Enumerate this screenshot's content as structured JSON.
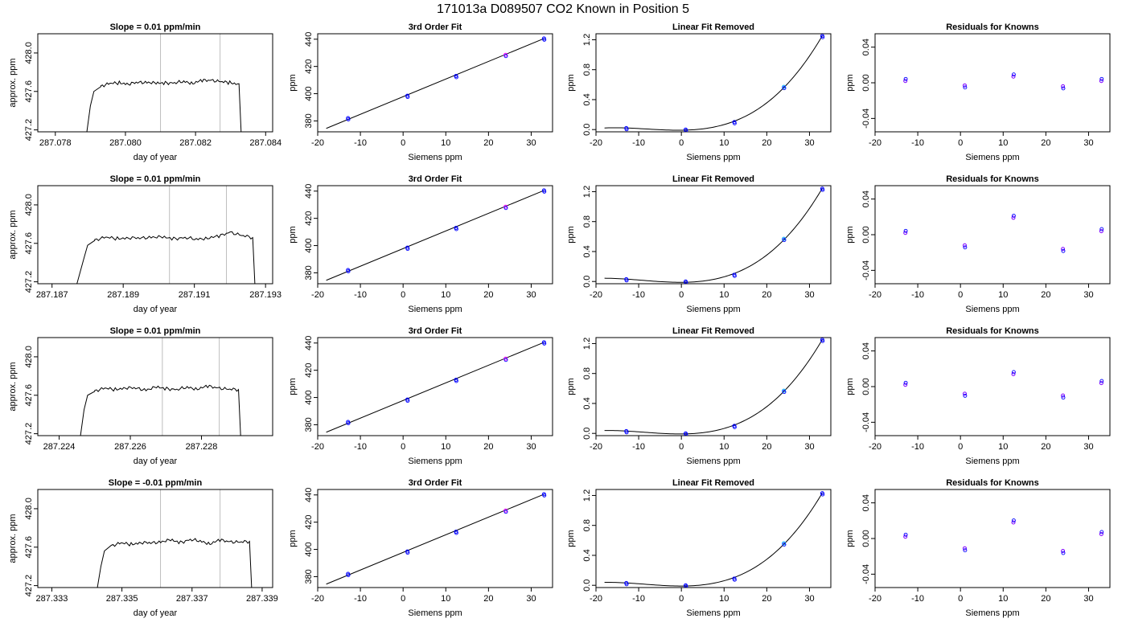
{
  "page": {
    "title": "171013a      D089507    CO2 Known in Position  5"
  },
  "colors": {
    "axis": "#000000",
    "line": "#000000",
    "vline": "#bebebe",
    "point_blue": "#0000ff",
    "point_magenta": "#ff00ff",
    "point_cyan": "#00aaff",
    "point_purple": "#8000ff"
  },
  "chart_data": [
    {
      "type": "line",
      "row": 1,
      "panel": "time",
      "title": "Slope =  0.01  ppm/min",
      "xlabel": "day of year",
      "ylabel": "approx. ppm",
      "xlim": [
        287.0775,
        287.0842
      ],
      "ylim": [
        427.18,
        428.2
      ],
      "xticks": [
        287.078,
        287.08,
        287.082,
        287.084
      ],
      "xtick_labels": [
        "287.078",
        "287.080",
        "287.082",
        "287.084"
      ],
      "yticks": [
        427.2,
        427.6,
        428.0
      ],
      "ytick_labels": [
        "427.2",
        "427.6",
        "428.0"
      ],
      "vlines": [
        287.081,
        287.0827
      ],
      "segments": {
        "start": [
          287.0789,
          427.18
        ],
        "rise": [
          [
            287.079,
            427.45
          ],
          [
            287.0791,
            427.6
          ],
          [
            287.0793,
            427.65
          ]
        ],
        "end": [
          287.0833,
          427.18
        ]
      },
      "plateau": [
        427.66,
        427.68,
        427.69,
        427.68,
        427.69,
        427.7,
        427.68,
        427.69,
        427.69,
        427.7,
        427.69,
        427.71,
        427.72,
        427.7,
        427.69,
        427.68
      ]
    },
    {
      "type": "scatter",
      "row": 1,
      "panel": "fit3",
      "title": "3rd Order Fit",
      "xlabel": "Siemens ppm",
      "ylabel": "ppm",
      "xlim": [
        -20,
        35
      ],
      "ylim": [
        372,
        444
      ],
      "xticks": [
        -20,
        -10,
        0,
        10,
        20,
        30
      ],
      "yticks": [
        380,
        400,
        420,
        440
      ],
      "x": [
        -12.9,
        1.0,
        12.4,
        24.0,
        33.0
      ],
      "y": [
        382.0,
        398.5,
        413.0,
        428.5,
        440.5
      ],
      "fit_line": [
        [
          -18,
          374.5
        ],
        [
          33,
          440.5
        ]
      ]
    },
    {
      "type": "scatter",
      "row": 1,
      "panel": "linrem",
      "title": "Linear Fit Removed",
      "xlabel": "Siemens ppm",
      "ylabel": "ppm",
      "xlim": [
        -20,
        35
      ],
      "ylim": [
        -0.03,
        1.28
      ],
      "xticks": [
        -20,
        -10,
        0,
        10,
        20,
        30
      ],
      "yticks": [
        0.0,
        0.4,
        0.8,
        1.2
      ],
      "x": [
        -12.9,
        1.0,
        12.4,
        24.0,
        33.0
      ],
      "y": [
        0.02,
        0.0,
        0.1,
        0.57,
        1.25
      ]
    },
    {
      "type": "scatter",
      "row": 1,
      "panel": "resid",
      "title": "Residuals for Knowns",
      "xlabel": "Siemens ppm",
      "ylabel": "ppm",
      "xlim": [
        -20,
        35
      ],
      "ylim": [
        -0.055,
        0.055
      ],
      "xticks": [
        -20,
        -10,
        0,
        10,
        20,
        30
      ],
      "yticks": [
        -0.04,
        0.0,
        0.04
      ],
      "ytick_labels": [
        "-0.04",
        "0.00",
        "0.04"
      ],
      "x": [
        -12.9,
        1.0,
        12.4,
        24.0,
        33.0
      ],
      "y": [
        0.002,
        -0.003,
        0.007,
        -0.004,
        0.002
      ]
    },
    {
      "type": "line",
      "row": 2,
      "panel": "time",
      "title": "Slope =  0.01  ppm/min",
      "xlabel": "day of year",
      "ylabel": "approx. ppm",
      "xlim": [
        287.1866,
        287.1932
      ],
      "ylim": [
        427.18,
        428.2
      ],
      "xticks": [
        287.187,
        287.189,
        287.191,
        287.193
      ],
      "xtick_labels": [
        "287.187",
        "287.189",
        "287.191",
        "287.193"
      ],
      "vlines": [
        287.1903,
        287.1919
      ],
      "yticks": [
        427.2,
        427.6,
        428.0
      ],
      "ytick_labels": [
        "427.2",
        "427.6",
        "428.0"
      ],
      "segments": {
        "start": [
          287.1877,
          427.18
        ],
        "rise": [
          [
            287.1879,
            427.45
          ],
          [
            287.188,
            427.58
          ],
          [
            287.1882,
            427.63
          ]
        ],
        "end": [
          287.1927,
          427.18
        ]
      },
      "plateau": [
        427.64,
        427.66,
        427.65,
        427.66,
        427.65,
        427.67,
        427.66,
        427.65,
        427.66,
        427.64,
        427.66,
        427.67,
        427.72,
        427.68,
        427.66
      ]
    },
    {
      "type": "scatter",
      "row": 2,
      "panel": "fit3",
      "title": "3rd Order Fit",
      "xlabel": "Siemens ppm",
      "ylabel": "ppm",
      "xlim": [
        -20,
        35
      ],
      "ylim": [
        372,
        444
      ],
      "xticks": [
        -20,
        -10,
        0,
        10,
        20,
        30
      ],
      "yticks": [
        380,
        400,
        420,
        440
      ],
      "x": [
        -12.9,
        1.0,
        12.4,
        24.0,
        33.0
      ],
      "y": [
        382.0,
        398.5,
        413.0,
        428.5,
        440.5
      ],
      "fit_line": [
        [
          -18,
          374.5
        ],
        [
          33,
          440.5
        ]
      ]
    },
    {
      "type": "scatter",
      "row": 2,
      "panel": "linrem",
      "title": "Linear Fit Removed",
      "xlabel": "Siemens ppm",
      "ylabel": "ppm",
      "xlim": [
        -20,
        35
      ],
      "ylim": [
        -0.03,
        1.28
      ],
      "xticks": [
        -20,
        -10,
        0,
        10,
        20,
        30
      ],
      "yticks": [
        0.0,
        0.4,
        0.8,
        1.2
      ],
      "x": [
        -12.9,
        1.0,
        12.4,
        24.0,
        33.0
      ],
      "y": [
        0.03,
        0.0,
        0.09,
        0.57,
        1.24
      ]
    },
    {
      "type": "scatter",
      "row": 2,
      "panel": "resid",
      "title": "Residuals for Knowns",
      "xlabel": "Siemens ppm",
      "ylabel": "ppm",
      "xlim": [
        -20,
        35
      ],
      "ylim": [
        -0.055,
        0.055
      ],
      "xticks": [
        -20,
        -10,
        0,
        10,
        20,
        30
      ],
      "yticks": [
        -0.04,
        0.0,
        0.04
      ],
      "ytick_labels": [
        "-0.04",
        "0.00",
        "0.04"
      ],
      "x": [
        -12.9,
        1.0,
        12.4,
        24.0,
        33.0
      ],
      "y": [
        0.002,
        -0.012,
        0.019,
        -0.016,
        0.004
      ]
    },
    {
      "type": "line",
      "row": 3,
      "panel": "time",
      "title": "Slope =  0.01  ppm/min",
      "xlabel": "day of year",
      "ylabel": "approx. ppm",
      "xlim": [
        287.2234,
        287.23
      ],
      "ylim": [
        427.18,
        428.2
      ],
      "xticks": [
        287.224,
        287.226,
        287.228
      ],
      "xtick_labels": [
        "287.224",
        "287.226",
        "287.228"
      ],
      "vlines": [
        287.2269,
        287.2285
      ],
      "yticks": [
        427.2,
        427.6,
        428.0
      ],
      "ytick_labels": [
        "427.2",
        "427.6",
        "428.0"
      ],
      "segments": {
        "start": [
          287.2246,
          427.18
        ],
        "rise": [
          [
            287.2247,
            427.45
          ],
          [
            287.2248,
            427.6
          ],
          [
            287.225,
            427.64
          ]
        ],
        "end": [
          287.2291,
          427.18
        ]
      },
      "plateau": [
        427.65,
        427.67,
        427.66,
        427.68,
        427.67,
        427.66,
        427.68,
        427.67,
        427.66,
        427.68,
        427.67,
        427.69,
        427.68,
        427.66,
        427.66
      ]
    },
    {
      "type": "scatter",
      "row": 3,
      "panel": "fit3",
      "title": "3rd Order Fit",
      "xlabel": "Siemens ppm",
      "ylabel": "ppm",
      "xlim": [
        -20,
        35
      ],
      "ylim": [
        372,
        444
      ],
      "xticks": [
        -20,
        -10,
        0,
        10,
        20,
        30
      ],
      "yticks": [
        380,
        400,
        420,
        440
      ],
      "x": [
        -12.9,
        1.0,
        12.4,
        24.0,
        33.0
      ],
      "y": [
        382.0,
        398.5,
        413.0,
        428.5,
        440.5
      ],
      "fit_line": [
        [
          -18,
          374.5
        ],
        [
          33,
          440.5
        ]
      ]
    },
    {
      "type": "scatter",
      "row": 3,
      "panel": "linrem",
      "title": "Linear Fit Removed",
      "xlabel": "Siemens ppm",
      "ylabel": "ppm",
      "xlim": [
        -20,
        35
      ],
      "ylim": [
        -0.03,
        1.28
      ],
      "xticks": [
        -20,
        -10,
        0,
        10,
        20,
        30
      ],
      "yticks": [
        0.0,
        0.4,
        0.8,
        1.2
      ],
      "x": [
        -12.9,
        1.0,
        12.4,
        24.0,
        33.0
      ],
      "y": [
        0.03,
        0.0,
        0.1,
        0.57,
        1.25
      ]
    },
    {
      "type": "scatter",
      "row": 3,
      "panel": "resid",
      "title": "Residuals for Knowns",
      "xlabel": "Siemens ppm",
      "ylabel": "ppm",
      "xlim": [
        -20,
        35
      ],
      "ylim": [
        -0.055,
        0.055
      ],
      "xticks": [
        -20,
        -10,
        0,
        10,
        20,
        30
      ],
      "yticks": [
        -0.04,
        0.0,
        0.04
      ],
      "ytick_labels": [
        "-0.04",
        "0.00",
        "0.04"
      ],
      "x": [
        -12.9,
        1.0,
        12.4,
        24.0,
        33.0
      ],
      "y": [
        0.002,
        -0.008,
        0.014,
        -0.01,
        0.004
      ]
    },
    {
      "type": "line",
      "row": 4,
      "panel": "time",
      "title": "Slope =  -0.01  ppm/min",
      "xlabel": "day of year",
      "ylabel": "approx. ppm",
      "xlim": [
        287.3326,
        287.3393
      ],
      "ylim": [
        427.18,
        428.2
      ],
      "xticks": [
        287.333,
        287.335,
        287.337,
        287.339
      ],
      "xtick_labels": [
        "287.333",
        "287.335",
        "287.337",
        "287.339"
      ],
      "vlines": [
        287.3361,
        287.3378
      ],
      "yticks": [
        427.2,
        427.6,
        428.0
      ],
      "ytick_labels": [
        "427.2",
        "427.6",
        "428.0"
      ],
      "segments": {
        "start": [
          287.3343,
          427.18
        ],
        "rise": [
          [
            287.3344,
            427.4
          ],
          [
            287.3345,
            427.56
          ],
          [
            287.3347,
            427.62
          ]
        ],
        "end": [
          287.3387,
          427.18
        ]
      },
      "plateau": [
        427.62,
        427.64,
        427.63,
        427.65,
        427.64,
        427.66,
        427.67,
        427.65,
        427.68,
        427.66,
        427.64,
        427.67,
        427.66,
        427.65,
        427.66
      ]
    },
    {
      "type": "scatter",
      "row": 4,
      "panel": "fit3",
      "title": "3rd Order Fit",
      "xlabel": "Siemens ppm",
      "ylabel": "ppm",
      "xlim": [
        -20,
        35
      ],
      "ylim": [
        372,
        444
      ],
      "xticks": [
        -20,
        -10,
        0,
        10,
        20,
        30
      ],
      "yticks": [
        380,
        400,
        420,
        440
      ],
      "x": [
        -12.9,
        1.0,
        12.4,
        24.0,
        33.0
      ],
      "y": [
        382.0,
        398.5,
        413.0,
        428.5,
        440.5
      ],
      "fit_line": [
        [
          -18,
          374.5
        ],
        [
          33,
          440.5
        ]
      ]
    },
    {
      "type": "scatter",
      "row": 4,
      "panel": "linrem",
      "title": "Linear Fit Removed",
      "xlabel": "Siemens ppm",
      "ylabel": "ppm",
      "xlim": [
        -20,
        35
      ],
      "ylim": [
        -0.03,
        1.28
      ],
      "xticks": [
        -20,
        -10,
        0,
        10,
        20,
        30
      ],
      "yticks": [
        0.0,
        0.4,
        0.8,
        1.2
      ],
      "x": [
        -12.9,
        1.0,
        12.4,
        24.0,
        33.0
      ],
      "y": [
        0.03,
        0.0,
        0.09,
        0.56,
        1.23
      ]
    },
    {
      "type": "scatter",
      "row": 4,
      "panel": "resid",
      "title": "Residuals for Knowns",
      "xlabel": "Siemens ppm",
      "ylabel": "ppm",
      "xlim": [
        -20,
        35
      ],
      "ylim": [
        -0.055,
        0.055
      ],
      "xticks": [
        -20,
        -10,
        0,
        10,
        20,
        30
      ],
      "yticks": [
        -0.04,
        0.0,
        0.04
      ],
      "ytick_labels": [
        "-0.04",
        "0.00",
        "0.04"
      ],
      "x": [
        -12.9,
        1.0,
        12.4,
        24.0,
        33.0
      ],
      "y": [
        0.002,
        -0.011,
        0.018,
        -0.014,
        0.005
      ]
    }
  ]
}
